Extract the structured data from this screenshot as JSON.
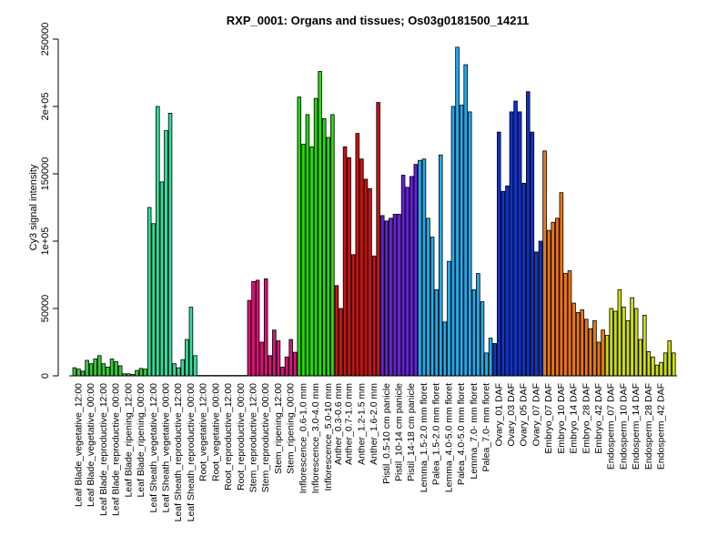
{
  "chart_data": {
    "type": "bar",
    "title": "RXP_0001: Organs and tissues; Os03g0181500_14211",
    "xlabel": "",
    "ylabel": "Cy3 signal intensity",
    "ylim": [
      0,
      250000
    ],
    "yticks": [
      0,
      50000,
      100000,
      150000,
      200000,
      250000
    ],
    "ytick_labels": [
      "0",
      "50000",
      "1e+05",
      "150000",
      "2e+05",
      "250000"
    ],
    "grid": false,
    "legend": "none",
    "groups": [
      {
        "label": "Leaf Blade_vegetative_12:00",
        "color": "#33cc33",
        "values": [
          6000,
          5000,
          3500
        ]
      },
      {
        "label": "Leaf Blade_vegetative_00:00",
        "color": "#33cc33",
        "values": [
          11500,
          9000,
          12500
        ]
      },
      {
        "label": "Leaf Blade_reproductive_12:00",
        "color": "#33cc33",
        "values": [
          15000,
          9000,
          6500
        ]
      },
      {
        "label": "Leaf Blade_reproductive_00:00",
        "color": "#33cc33",
        "values": [
          12500,
          10500,
          7500
        ]
      },
      {
        "label": "Leaf Blade_ripening_12:00",
        "color": "#33cc33",
        "values": [
          1500,
          1500,
          1000
        ]
      },
      {
        "label": "Leaf Blade_ripening_00:00",
        "color": "#33cc33",
        "values": [
          4000,
          5500,
          5000
        ]
      },
      {
        "label": "Leaf Sheath_vegetative_12:00",
        "color": "#33dd99",
        "values": [
          125000,
          113000,
          200000
        ]
      },
      {
        "label": "Leaf Sheath_vegetative_00:00",
        "color": "#33dd99",
        "values": [
          144000,
          182000,
          195000
        ]
      },
      {
        "label": "Leaf Sheath_reproductive_12:00",
        "color": "#33dd99",
        "values": [
          9000,
          6000,
          12000
        ]
      },
      {
        "label": "Leaf Sheath_reproductive_00:00",
        "color": "#33dd99",
        "values": [
          27000,
          51000,
          15000
        ]
      },
      {
        "label": "Root_vegetative_12:00",
        "color": "#777777",
        "values": [
          300,
          300,
          300
        ]
      },
      {
        "label": "Root_vegetative_00:00",
        "color": "#777777",
        "values": [
          300,
          300,
          300
        ]
      },
      {
        "label": "Root_reproductive_12:00",
        "color": "#777777",
        "values": [
          300,
          300,
          300
        ]
      },
      {
        "label": "Root_reproductive_00:00",
        "color": "#777777",
        "values": [
          300,
          300,
          300
        ]
      },
      {
        "label": "Stem_reproductive_12:00",
        "color": "#dd1177",
        "values": [
          56000,
          70000,
          71000
        ]
      },
      {
        "label": "Stem_reproductive_00:00",
        "color": "#dd1177",
        "values": [
          25000,
          72000,
          15000
        ]
      },
      {
        "label": "Stem_ripening_12:00",
        "color": "#dd1177",
        "values": [
          34000,
          26000,
          6500
        ]
      },
      {
        "label": "Stem_ripening_00:00",
        "color": "#dd1177",
        "values": [
          14000,
          27000,
          17500
        ]
      },
      {
        "label": "Inflorescence_0.6-1.0 mm",
        "color": "#22dd00",
        "values": [
          207000,
          172000,
          194000
        ]
      },
      {
        "label": "Inflorescence_3.0-4.0 mm",
        "color": "#22dd00",
        "values": [
          170000,
          206000,
          226000
        ]
      },
      {
        "label": "Inflorescence_5.0-10 mm",
        "color": "#22dd00",
        "values": [
          191000,
          177000,
          194000
        ]
      },
      {
        "label": "Anther_0.3-0.6 mm",
        "color": "#cc1111",
        "values": [
          67000,
          50000
        ]
      },
      {
        "label": "Anther_0.7-1.0 mm",
        "color": "#cc1111",
        "values": [
          170000,
          162000,
          90000
        ]
      },
      {
        "label": "Anther_1.2-1.5 mm",
        "color": "#cc1111",
        "values": [
          180000,
          161000,
          146000
        ]
      },
      {
        "label": "Anther_1.6-2.0 mm",
        "color": "#cc1111",
        "values": [
          139000,
          89000,
          203000
        ]
      },
      {
        "label": "Pistil_0.5-10 cm panicle",
        "color": "#6622dd",
        "values": [
          119000,
          115000,
          117000
        ]
      },
      {
        "label": "Pistil_10-14 cm panicle",
        "color": "#6622dd",
        "values": [
          120000,
          120000,
          149000
        ]
      },
      {
        "label": "Pistil_14-18 cm panicle",
        "color": "#6622dd",
        "values": [
          140000,
          148000,
          157000
        ]
      },
      {
        "label": "Lemma_1.5-2.0 mm floret",
        "color": "#22aaee",
        "values": [
          160000,
          161000,
          117000
        ]
      },
      {
        "label": "Palea_1.5-2.0 mm floret",
        "color": "#22aaee",
        "values": [
          103000,
          64000,
          164000
        ]
      },
      {
        "label": "Lemma_4.0-5.0 mm floret",
        "color": "#22aaee",
        "values": [
          40000,
          85000,
          200000
        ]
      },
      {
        "label": "Palea_4.0-5.0 mm floret",
        "color": "#22aaee",
        "values": [
          244000,
          201000,
          231000
        ]
      },
      {
        "label": "Lemma_7.0- mm floret",
        "color": "#22aaee",
        "values": [
          196000,
          64000,
          76000
        ]
      },
      {
        "label": "Palea_7.0- mm floret",
        "color": "#22aaee",
        "values": [
          55000,
          17000,
          28000
        ]
      },
      {
        "label": "Ovary_01 DAF",
        "color": "#1133cc",
        "values": [
          24000,
          181000,
          137000
        ]
      },
      {
        "label": "Ovary_03 DAF",
        "color": "#1133cc",
        "values": [
          141000,
          196000,
          204000
        ]
      },
      {
        "label": "Ovary_05 DAF",
        "color": "#1133cc",
        "values": [
          196000,
          143000,
          211000
        ]
      },
      {
        "label": "Ovary_07 DAF",
        "color": "#1133cc",
        "values": [
          181000,
          92000,
          100000
        ]
      },
      {
        "label": "Embryo_07 DAF",
        "color": "#ee7711",
        "values": [
          167000,
          108000,
          114000
        ]
      },
      {
        "label": "Embryo_10 DAF",
        "color": "#ee7711",
        "values": [
          117000,
          136000,
          76000
        ]
      },
      {
        "label": "Embryo_14 DAF",
        "color": "#ee7711",
        "values": [
          78000,
          54000,
          47000
        ]
      },
      {
        "label": "Embryo_28 DAF",
        "color": "#ee7711",
        "values": [
          49000,
          42000,
          35000
        ]
      },
      {
        "label": "Embryo_42 DAF",
        "color": "#ee7711",
        "values": [
          41000,
          25000,
          34000
        ]
      },
      {
        "label": "Endosperm_07 DAF",
        "color": "#ccdd11",
        "values": [
          30000,
          50000,
          48000
        ]
      },
      {
        "label": "Endosperm_10 DAF",
        "color": "#ccdd11",
        "values": [
          64000,
          51000,
          41000
        ]
      },
      {
        "label": "Endosperm_14 DAF",
        "color": "#ccdd11",
        "values": [
          58000,
          50000,
          27000
        ]
      },
      {
        "label": "Endosperm_28 DAF",
        "color": "#ccdd11",
        "values": [
          45000,
          18000,
          14000
        ]
      },
      {
        "label": "Endosperm_42 DAF",
        "color": "#ccdd11",
        "values": [
          8000,
          10000,
          17000
        ]
      }
    ],
    "extra_tail": [
      {
        "color": "#ccdd11",
        "values": [
          26000,
          17000
        ]
      }
    ]
  }
}
